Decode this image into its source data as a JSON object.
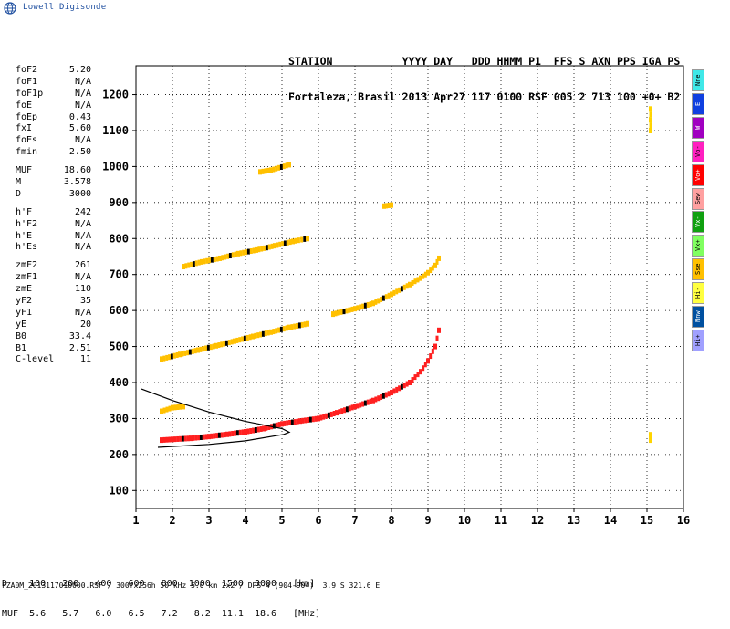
{
  "brand": "Lowell Digisonde",
  "header": {
    "line1": "STATION           YYYY DAY   DDD HHMM P1  FFS S AXN PPS IGA PS",
    "line2": "Fortaleza, Brasil 2013 Apr27 117 0100 RSF 005 2 713 100 +0+ B2"
  },
  "params": {
    "group1": [
      {
        "label": "foF2",
        "value": "5.20"
      },
      {
        "label": "foF1",
        "value": "N/A"
      },
      {
        "label": "foF1p",
        "value": "N/A"
      },
      {
        "label": "foE",
        "value": "N/A"
      },
      {
        "label": "foEp",
        "value": "0.43"
      },
      {
        "label": "fxI",
        "value": "5.60"
      },
      {
        "label": "foEs",
        "value": "N/A"
      },
      {
        "label": "fmin",
        "value": "2.50"
      }
    ],
    "group2": [
      {
        "label": "MUF",
        "value": "18.60"
      },
      {
        "label": "M",
        "value": "3.578"
      },
      {
        "label": "D",
        "value": "3000"
      }
    ],
    "group3": [
      {
        "label": "h'F",
        "value": "242"
      },
      {
        "label": "h'F2",
        "value": "N/A"
      },
      {
        "label": "h'E",
        "value": "N/A"
      },
      {
        "label": "h'Es",
        "value": "N/A"
      }
    ],
    "group4": [
      {
        "label": "zmF2",
        "value": "261"
      },
      {
        "label": "zmF1",
        "value": "N/A"
      },
      {
        "label": "zmE",
        "value": "110"
      },
      {
        "label": "yF2",
        "value": "35"
      },
      {
        "label": "yF1",
        "value": "N/A"
      },
      {
        "label": "yE",
        "value": "20"
      },
      {
        "label": "B0",
        "value": "33.4"
      },
      {
        "label": "B1",
        "value": "2.51"
      },
      {
        "label": "C-level",
        "value": "11"
      }
    ]
  },
  "modes": [
    {
      "label": "Nne",
      "color": "#40e8e8"
    },
    {
      "label": "E",
      "color": "#1040e0"
    },
    {
      "label": "W",
      "color": "#a000c0"
    },
    {
      "label": "Vo-",
      "color": "#ff20c0"
    },
    {
      "label": "Vo+",
      "color": "#ff0000"
    },
    {
      "label": "Sew",
      "color": "#ffa0a0"
    },
    {
      "label": "Vx-",
      "color": "#10a010"
    },
    {
      "label": "Vx+",
      "color": "#80ff60"
    },
    {
      "label": "Sse",
      "color": "#ffc000"
    },
    {
      "label": "Hi-",
      "color": "#ffff40"
    },
    {
      "label": "Nnw",
      "color": "#0050a0"
    },
    {
      "label": "Hi+",
      "color": "#a0a0ff"
    }
  ],
  "bottom": {
    "line1": "D    100   200   400   600   800  1000  1500  3000   [km]",
    "line2": "MUF  5.6   5.7   6.0   6.5   7.2   8.2  11.1  18.6   [MHz]"
  },
  "footer": "FZA0M_2013117010000.RSF / 300fx256h 50 kHz 5.0 km 2x2 / DPS-4 (904-904)  3.9 S 321.6 E",
  "chart_data": {
    "type": "scatter",
    "title": "",
    "xlabel": "",
    "ylabel": "",
    "xlim": [
      1,
      16
    ],
    "ylim": [
      50,
      1280
    ],
    "x_ticks": [
      1,
      2,
      3,
      4,
      5,
      6,
      7,
      8,
      9,
      10,
      11,
      12,
      13,
      14,
      15,
      16
    ],
    "y_ticks": [
      100,
      200,
      300,
      400,
      500,
      600,
      700,
      800,
      900,
      1000,
      1100,
      1200
    ],
    "grid": "dotted",
    "series": [
      {
        "points": [
          [
            1.7,
            240
          ],
          [
            2.0,
            242
          ],
          [
            2.5,
            245
          ],
          [
            3.0,
            250
          ],
          [
            3.5,
            256
          ],
          [
            4.0,
            263
          ],
          [
            4.5,
            272
          ],
          [
            5.0,
            285
          ],
          [
            5.5,
            293
          ],
          [
            6.0,
            300
          ],
          [
            6.5,
            316
          ],
          [
            7.0,
            333
          ],
          [
            7.5,
            350
          ],
          [
            8.0,
            372
          ],
          [
            8.5,
            400
          ],
          [
            8.8,
            430
          ],
          [
            9.0,
            460
          ],
          [
            9.2,
            500
          ],
          [
            9.3,
            545
          ]
        ],
        "color": "#ff2020"
      },
      {
        "points": [
          [
            1.7,
            320
          ],
          [
            2.0,
            330
          ],
          [
            2.3,
            333
          ]
        ],
        "color": "#ffc000"
      },
      {
        "points": [
          [
            1.7,
            465
          ],
          [
            2.2,
            478
          ],
          [
            2.7,
            490
          ],
          [
            3.2,
            502
          ],
          [
            3.7,
            515
          ],
          [
            4.2,
            528
          ],
          [
            4.7,
            540
          ],
          [
            5.2,
            553
          ],
          [
            5.7,
            563
          ]
        ],
        "color": "#ffc000"
      },
      {
        "points": [
          [
            6.4,
            590
          ],
          [
            7.0,
            605
          ],
          [
            7.5,
            620
          ],
          [
            8.0,
            645
          ],
          [
            8.5,
            672
          ],
          [
            8.8,
            690
          ],
          [
            9.0,
            705
          ],
          [
            9.2,
            725
          ],
          [
            9.3,
            745
          ]
        ],
        "color": "#ffc000"
      },
      {
        "points": [
          [
            2.3,
            722
          ],
          [
            2.8,
            735
          ],
          [
            3.3,
            745
          ],
          [
            3.8,
            758
          ],
          [
            4.3,
            768
          ],
          [
            4.8,
            780
          ],
          [
            5.3,
            792
          ],
          [
            5.7,
            800
          ]
        ],
        "color": "#ffc000"
      },
      {
        "points": [
          [
            4.4,
            985
          ],
          [
            4.7,
            990
          ],
          [
            5.2,
            1005
          ]
        ],
        "color": "#ffc000"
      },
      {
        "points": [
          [
            7.8,
            890
          ],
          [
            8.0,
            893
          ]
        ],
        "color": "#ffc000"
      },
      {
        "points": [
          [
            15.1,
            1100
          ],
          [
            15.1,
            1130
          ],
          [
            15.1,
            1160
          ]
        ],
        "color": "#ffd400"
      },
      {
        "points": [
          [
            15.1,
            240
          ],
          [
            15.1,
            255
          ]
        ],
        "color": "#ffd400"
      }
    ],
    "profile_curves": [
      {
        "points": [
          [
            1.15,
            382
          ],
          [
            2.0,
            350
          ],
          [
            3.0,
            318
          ],
          [
            4.0,
            292
          ],
          [
            4.6,
            280
          ],
          [
            5.0,
            272
          ],
          [
            5.2,
            262
          ],
          [
            5.05,
            256
          ],
          [
            4.0,
            238
          ],
          [
            3.0,
            228
          ],
          [
            1.6,
            220
          ]
        ]
      }
    ]
  }
}
